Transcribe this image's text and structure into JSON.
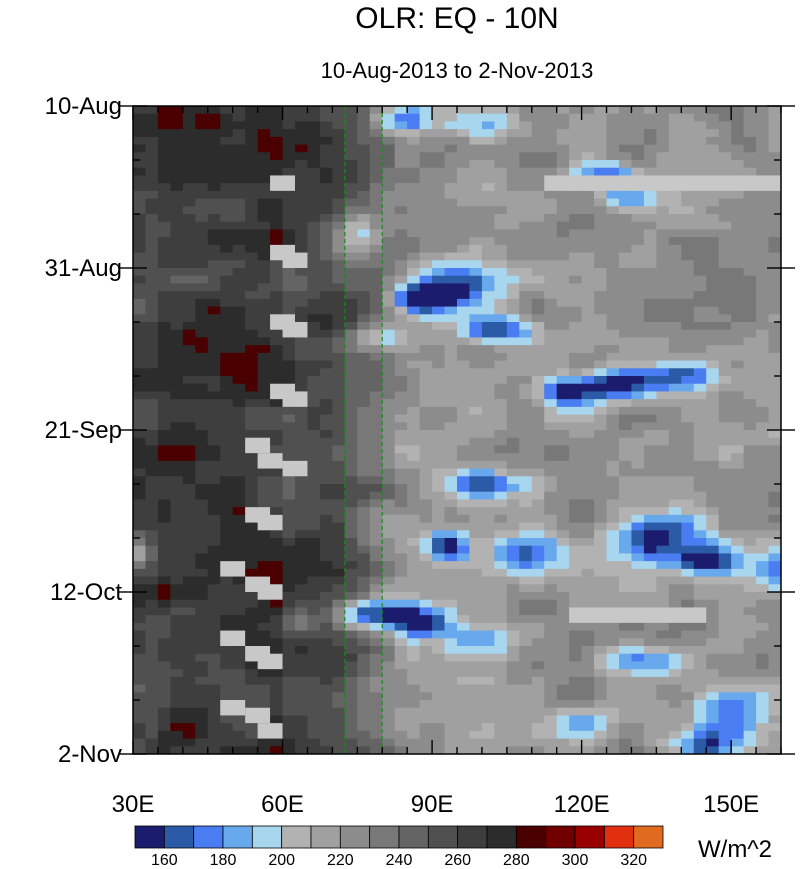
{
  "chart_data": {
    "type": "heatmap",
    "title": "OLR: EQ - 10N",
    "subtitle": "10-Aug-2013 to 2-Nov-2013",
    "x_range": [
      30,
      160
    ],
    "x_ticks": [
      {
        "value": 30,
        "label": "30E"
      },
      {
        "value": 60,
        "label": "60E"
      },
      {
        "value": 90,
        "label": "90E"
      },
      {
        "value": 120,
        "label": "120E"
      },
      {
        "value": 150,
        "label": "150E"
      }
    ],
    "y_range_days": [
      0,
      84
    ],
    "y_ticks": [
      {
        "value": 0,
        "label": "10-Aug"
      },
      {
        "value": 21,
        "label": "31-Aug"
      },
      {
        "value": 42,
        "label": "21-Sep"
      },
      {
        "value": 63,
        "label": "12-Oct"
      },
      {
        "value": 84,
        "label": "2-Nov"
      }
    ],
    "reference_lines_lon": [
      72.5,
      80
    ],
    "colorbar": {
      "unit": "W/m^2",
      "levels": [
        150,
        160,
        170,
        180,
        190,
        200,
        210,
        220,
        230,
        240,
        250,
        260,
        270,
        280,
        290,
        300,
        310,
        320,
        330
      ],
      "labels": [
        "160",
        "180",
        "200",
        "220",
        "240",
        "260",
        "280",
        "300",
        "320"
      ],
      "colors": [
        "#1c1c6e",
        "#2b5aa6",
        "#4a7df2",
        "#68a9ee",
        "#a8d6ee",
        "#b2b2b2",
        "#a0a0a0",
        "#8c8c8c",
        "#787878",
        "#646464",
        "#505050",
        "#3e3e3e",
        "#2c2c2c",
        "#4a0000",
        "#700000",
        "#990000",
        "#e03010",
        "#e06a20"
      ]
    },
    "missing_color": "#c8c8c8"
  }
}
